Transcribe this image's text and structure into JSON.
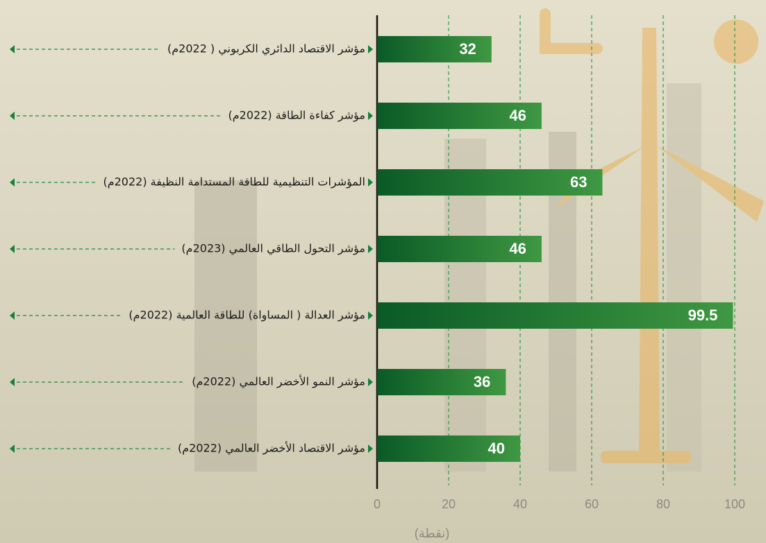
{
  "chart_data": {
    "type": "bar",
    "orientation": "horizontal",
    "categories": [
      "مؤشر الاقتصاد الدائري الكربوني ( 2022م)",
      "مؤشر كفاءة الطاقة (2022م)",
      "المؤشرات التنظيمية للطاقة المستدامة النظيفة (2022م)",
      "مؤشر التحول الطاقي العالمي (2023م)",
      "مؤشر العدالة ( المساواة) للطاقة العالمية (2022م)",
      "مؤشر النمو الأخضر العالمي (2022م)",
      "مؤشر الاقتصاد الأخضر العالمي (2022م)"
    ],
    "values": [
      32,
      46,
      63,
      46,
      99.5,
      36,
      40
    ],
    "color": "#1f7a35",
    "xlim": [
      0,
      100
    ],
    "xticks": [
      0,
      20,
      40,
      60,
      80,
      100
    ],
    "x_label": "(نقطة)",
    "grid": true
  }
}
